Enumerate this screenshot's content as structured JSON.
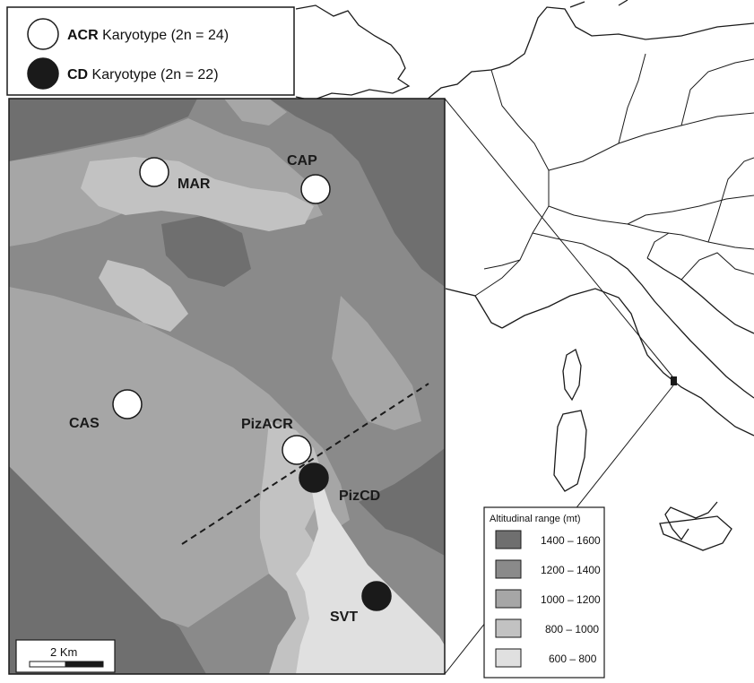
{
  "colors": {
    "high": "#6f6f6f",
    "mid_high": "#8a8a8a",
    "mid": "#a6a6a6",
    "low_mid": "#c2c2c2",
    "low": "#e0e0e0",
    "land": "#ffffff",
    "border": "#1a1a1a",
    "acr_marker": "#ffffff",
    "cd_marker": "#1a1a1a"
  },
  "karyotype_legend": {
    "acr": {
      "code": "ACR",
      "label": " Karyotype  (2n = 24)"
    },
    "cd": {
      "code": "CD",
      "label": " Karyotype  (2n = 22)"
    }
  },
  "sites": [
    {
      "id": "MAR",
      "label": "MAR",
      "karyotype": "ACR"
    },
    {
      "id": "CAP",
      "label": "CAP",
      "karyotype": "ACR"
    },
    {
      "id": "CAS",
      "label": "CAS",
      "karyotype": "ACR"
    },
    {
      "id": "PizACR",
      "label": "PizACR",
      "karyotype": "ACR"
    },
    {
      "id": "PizCD",
      "label": "PizCD",
      "karyotype": "CD"
    },
    {
      "id": "SVT",
      "label": "SVT",
      "karyotype": "CD"
    }
  ],
  "altitude_legend": {
    "title": "Altitudinal range (mt)",
    "ranges": [
      {
        "label": "1400 – 1600",
        "color_key": "high"
      },
      {
        "label": "1200 – 1400",
        "color_key": "mid_high"
      },
      {
        "label": "1000 – 1200",
        "color_key": "mid"
      },
      {
        "label": "800 – 1000",
        "color_key": "low_mid"
      },
      {
        "label": "600 – 800",
        "color_key": "low"
      }
    ]
  },
  "scale_bar": {
    "label": "2 Km"
  }
}
